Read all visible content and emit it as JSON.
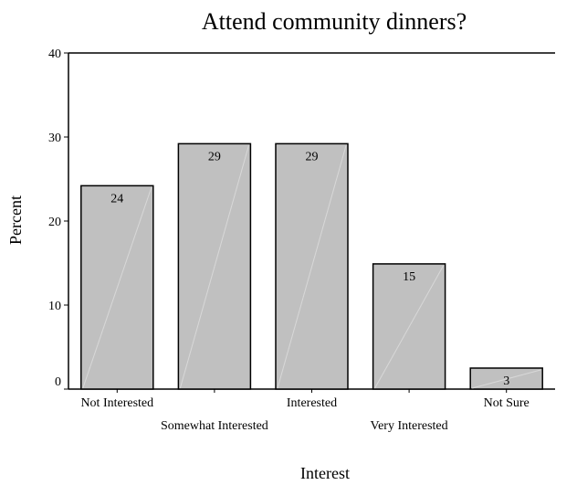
{
  "chart_data": {
    "type": "bar",
    "title": "Attend community dinners?",
    "xlabel": "Interest",
    "ylabel": "Percent",
    "categories": [
      "Not Interested",
      "Somewhat Interested",
      "Interested",
      "Very Interested",
      "Not Sure"
    ],
    "values": [
      24.2,
      29.2,
      29.2,
      14.9,
      2.5
    ],
    "data_labels": [
      "24",
      "29",
      "29",
      "15",
      "3"
    ],
    "yticks": [
      "0",
      "10",
      "20",
      "30",
      "40"
    ],
    "ylim": [
      0,
      40
    ],
    "grid": false,
    "legend": "none",
    "bar_color": "#c0c0c0",
    "bar_edge_color": "#000000"
  }
}
